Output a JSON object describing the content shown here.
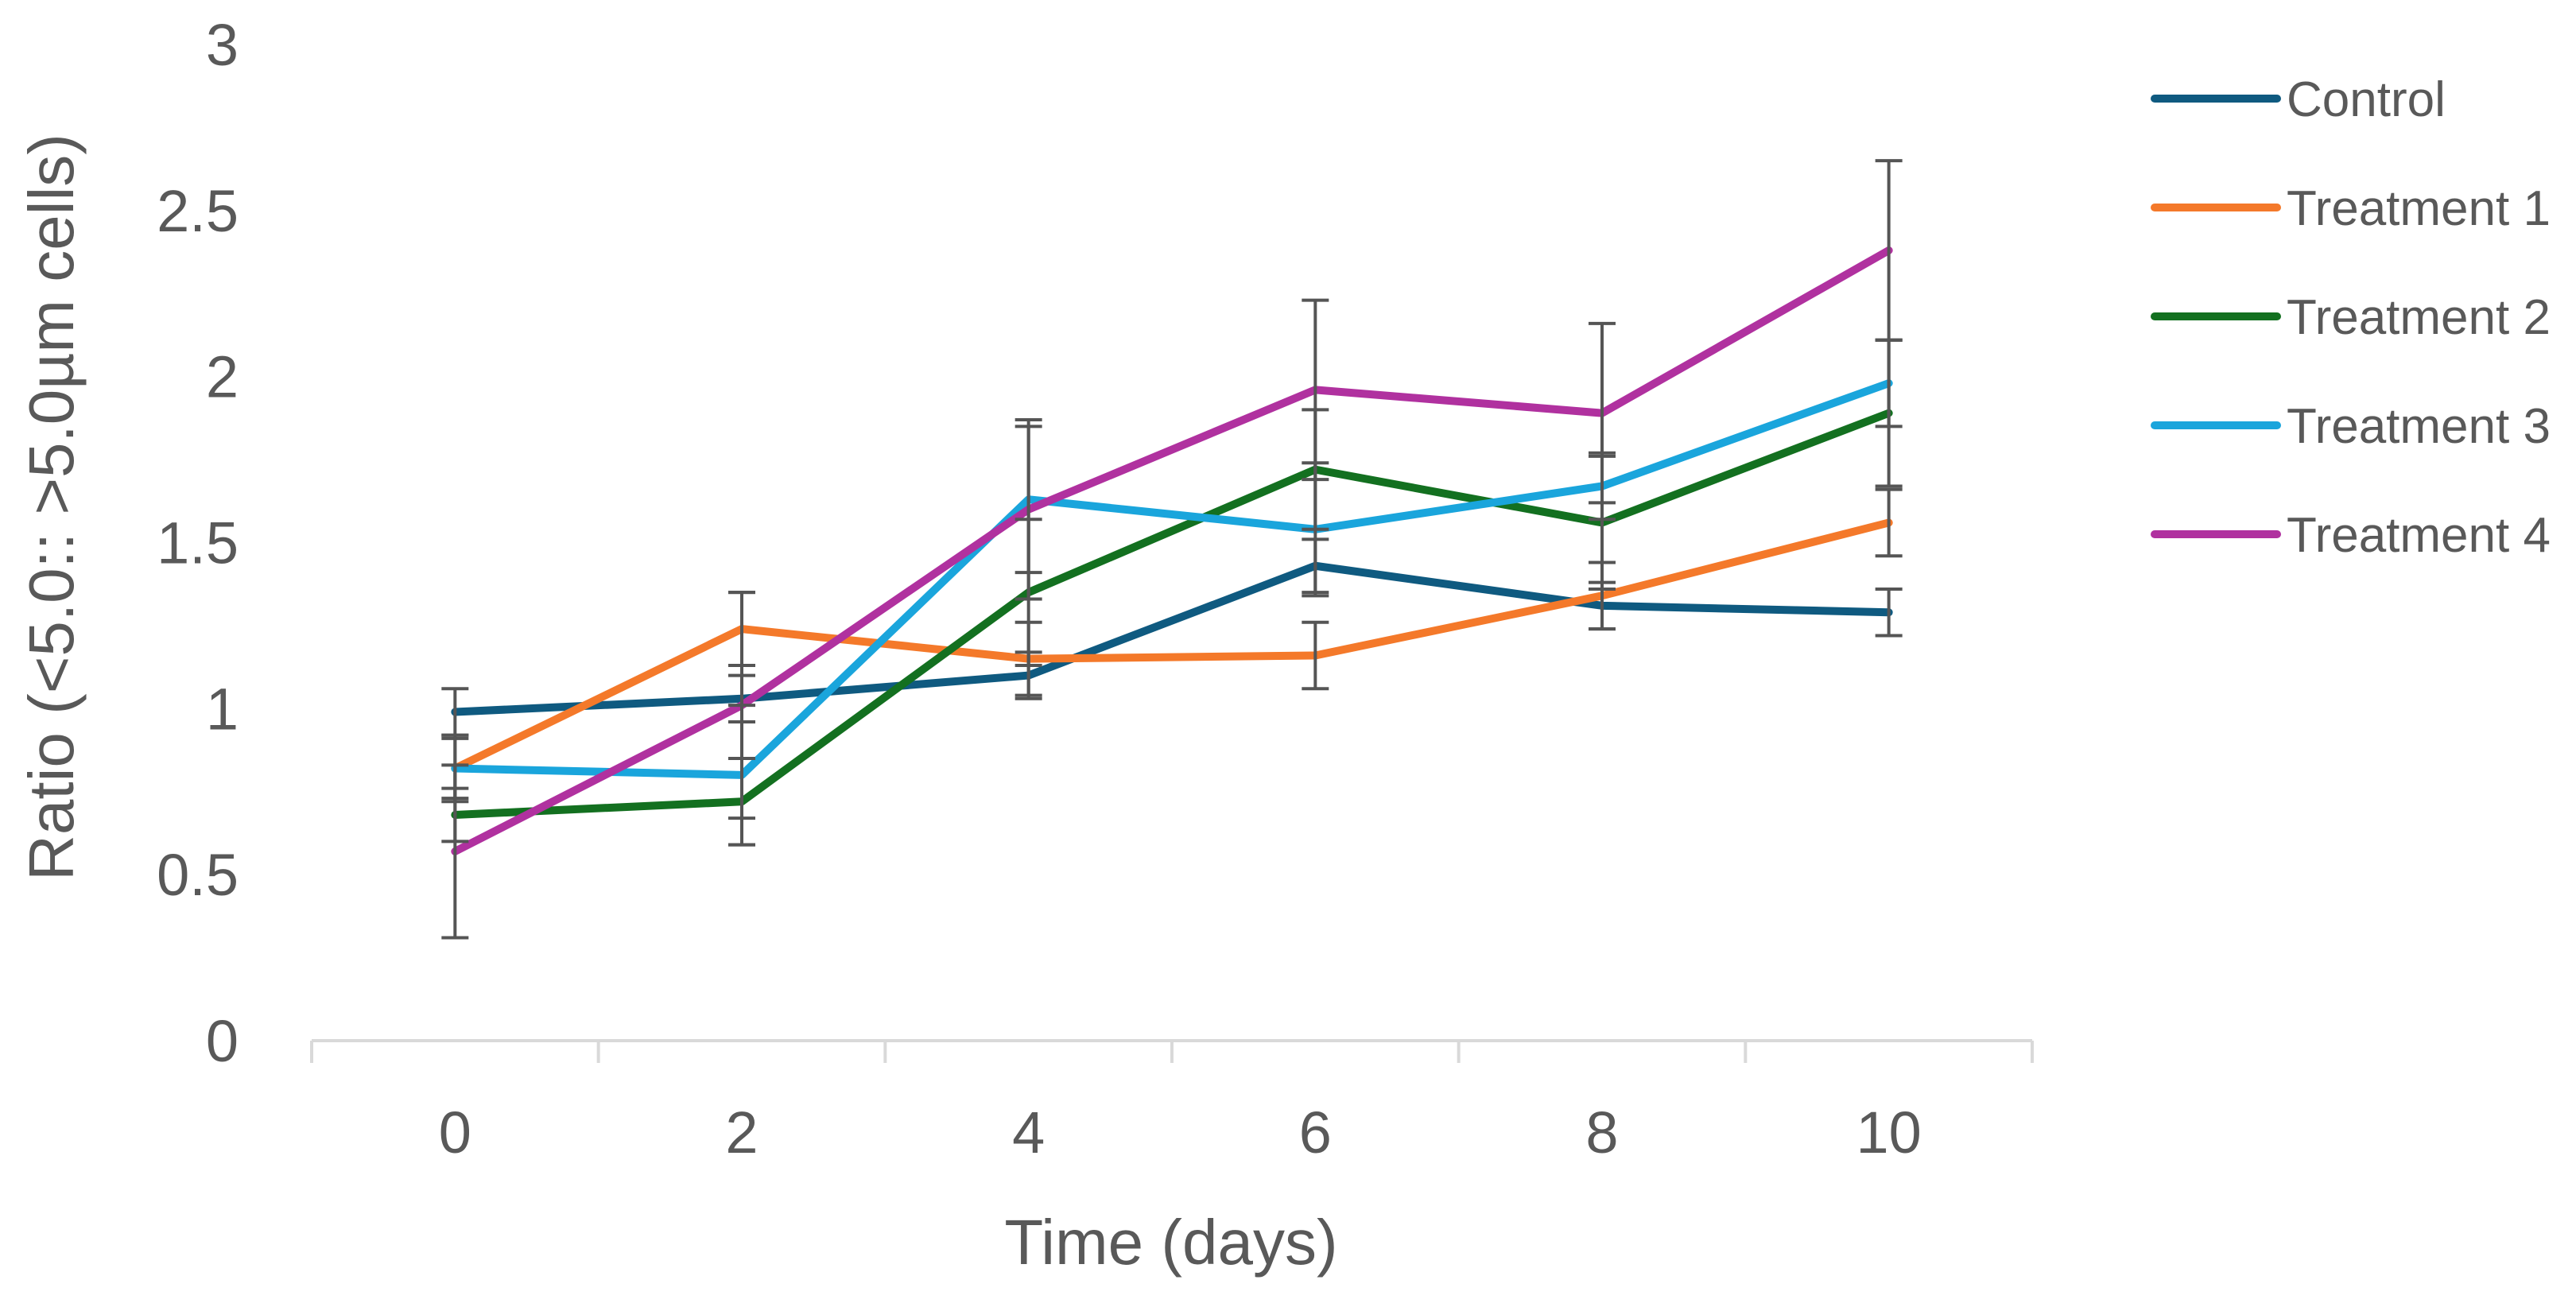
{
  "chart_data": {
    "type": "line",
    "title": "",
    "xlabel": "Time (days)",
    "ylabel": "Ratio (<5.0:: >5.0µm cells)",
    "ylim": [
      0,
      3
    ],
    "yticks": [
      "0",
      "0.5",
      "1",
      "1.5",
      "2",
      "2.5",
      "3"
    ],
    "categories": [
      "0",
      "2",
      "4",
      "6",
      "8",
      "10"
    ],
    "grid": false,
    "legend_position": "right",
    "series": [
      {
        "name": "Control",
        "color": "#0f5a80",
        "values": [
          0.99,
          1.03,
          1.1,
          1.43,
          1.31,
          1.29
        ],
        "errors": [
          0.07,
          0.07,
          0.07,
          0.08,
          0.07,
          0.07
        ]
      },
      {
        "name": "Treatment 1",
        "color": "#f4792a",
        "values": [
          0.82,
          1.24,
          1.15,
          1.16,
          1.34,
          1.56
        ],
        "errors": [
          0.09,
          0.11,
          0.11,
          0.1,
          0.1,
          0.1
        ]
      },
      {
        "name": "Treatment 2",
        "color": "#137020",
        "values": [
          0.68,
          0.72,
          1.35,
          1.72,
          1.56,
          1.89
        ],
        "errors": [
          0.08,
          0.13,
          0.22,
          0.18,
          0.2,
          0.22
        ]
      },
      {
        "name": "Treatment 3",
        "color": "#1aa5dc",
        "values": [
          0.82,
          0.8,
          1.63,
          1.54,
          1.67,
          1.98
        ],
        "errors": [
          0.1,
          0.21,
          0.22,
          0.2,
          0.1,
          0.13
        ]
      },
      {
        "name": "Treatment 4",
        "color": "#b0319f",
        "values": [
          0.57,
          1.01,
          1.6,
          1.96,
          1.89,
          2.38
        ],
        "errors": [
          0.26,
          0.34,
          0.27,
          0.27,
          0.27,
          0.27
        ]
      }
    ]
  }
}
